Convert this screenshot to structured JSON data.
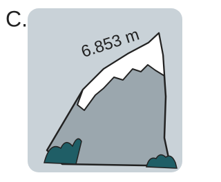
{
  "label": "C.",
  "annotation": "6.853 m"
}
